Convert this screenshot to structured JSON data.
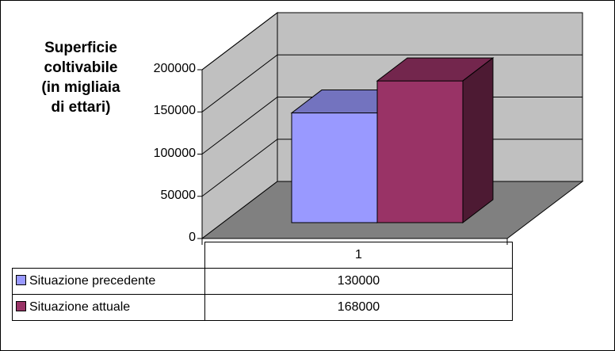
{
  "chart_data": {
    "type": "bar",
    "categories": [
      "1"
    ],
    "series": [
      {
        "name": "Situazione precedente",
        "values": [
          130000
        ],
        "color": "#9999ff"
      },
      {
        "name": "Situazione attuale",
        "values": [
          168000
        ],
        "color": "#993366"
      }
    ],
    "ylabel": "Superficie\ncoltivabile\n(in migliaia\ndi ettari)",
    "yticks": [
      0,
      50000,
      100000,
      150000,
      200000
    ],
    "ylim": [
      0,
      200000
    ],
    "three_d": true,
    "grid": true,
    "legend": "data-table"
  }
}
